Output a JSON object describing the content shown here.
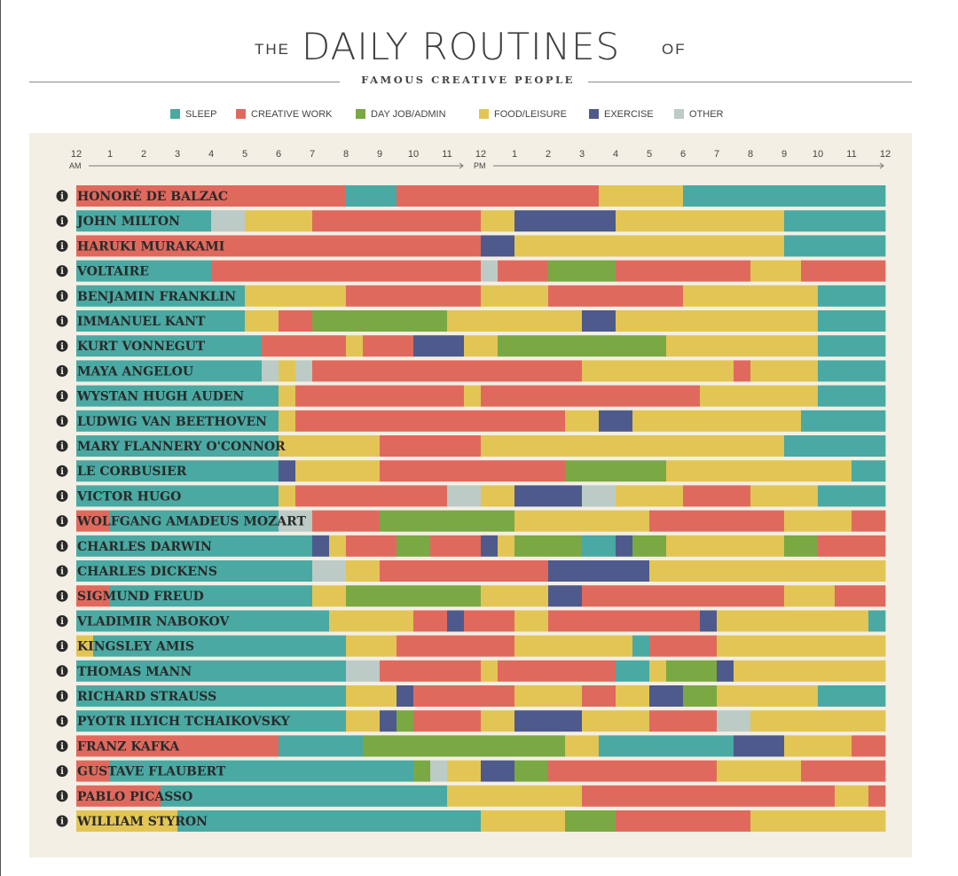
{
  "header": {
    "the": "THE",
    "title": "DAILY ROUTINES",
    "of": "OF",
    "subtitle": "FAMOUS CREATIVE PEOPLE"
  },
  "colors": {
    "sleep": "#4aa9a3",
    "creative": "#e0695e",
    "dayjob": "#7aa843",
    "food": "#e2c555",
    "exercise": "#4e5a8c",
    "other": "#bccbc6"
  },
  "chart_data": {
    "type": "bar",
    "orientation": "horizontal-stacked-timeline",
    "categories_key": {
      "S": "SLEEP",
      "C": "CREATIVE WORK",
      "D": "DAY JOB/ADMIN",
      "F": "FOOD/LEISURE",
      "E": "EXERCISE",
      "O": "OTHER"
    },
    "legend": [
      {
        "key": "S",
        "label": "SLEEP"
      },
      {
        "key": "C",
        "label": "CREATIVE WORK"
      },
      {
        "key": "D",
        "label": "DAY JOB/ADMIN"
      },
      {
        "key": "F",
        "label": "FOOD/LEISURE"
      },
      {
        "key": "E",
        "label": "EXERCISE"
      },
      {
        "key": "O",
        "label": "OTHER"
      }
    ],
    "x_ticks": [
      "12",
      "1",
      "2",
      "3",
      "4",
      "5",
      "6",
      "7",
      "8",
      "9",
      "10",
      "11",
      "12",
      "1",
      "2",
      "3",
      "4",
      "5",
      "6",
      "7",
      "8",
      "9",
      "10",
      "11",
      "12"
    ],
    "x_range_hours": [
      0,
      24
    ],
    "am_label": "AM",
    "pm_label": "PM",
    "info_glyph": "i",
    "rows": [
      {
        "name": "HONORÉ DE BALZAC",
        "segments": [
          [
            0,
            1,
            "C"
          ],
          [
            1,
            8,
            "C"
          ],
          [
            8,
            9.5,
            "S"
          ],
          [
            9.5,
            15.5,
            "C"
          ],
          [
            15.5,
            18,
            "F"
          ],
          [
            18,
            24,
            "S"
          ]
        ]
      },
      {
        "name": "JOHN MILTON",
        "segments": [
          [
            0,
            4,
            "S"
          ],
          [
            4,
            5,
            "O"
          ],
          [
            5,
            7,
            "F"
          ],
          [
            7,
            12,
            "C"
          ],
          [
            12,
            13,
            "F"
          ],
          [
            13,
            16,
            "E"
          ],
          [
            16,
            21,
            "F"
          ],
          [
            21,
            24,
            "S"
          ]
        ]
      },
      {
        "name": "HARUKI MURAKAMI",
        "segments": [
          [
            0,
            12,
            "C"
          ],
          [
            12,
            13,
            "E"
          ],
          [
            13,
            21,
            "F"
          ],
          [
            21,
            24,
            "S"
          ]
        ]
      },
      {
        "name": "VOLTAIRE",
        "segments": [
          [
            0,
            4,
            "S"
          ],
          [
            4,
            12,
            "C"
          ],
          [
            12,
            12.5,
            "O"
          ],
          [
            12.5,
            14,
            "C"
          ],
          [
            14,
            16,
            "D"
          ],
          [
            16,
            20,
            "C"
          ],
          [
            20,
            21.5,
            "F"
          ],
          [
            21.5,
            24,
            "C"
          ]
        ]
      },
      {
        "name": "BENJAMIN FRANKLIN",
        "segments": [
          [
            0,
            5,
            "S"
          ],
          [
            5,
            8,
            "F"
          ],
          [
            8,
            12,
            "C"
          ],
          [
            12,
            14,
            "F"
          ],
          [
            14,
            18,
            "C"
          ],
          [
            18,
            22,
            "F"
          ],
          [
            22,
            24,
            "S"
          ]
        ]
      },
      {
        "name": "IMMANUEL KANT",
        "segments": [
          [
            0,
            5,
            "S"
          ],
          [
            5,
            6,
            "F"
          ],
          [
            6,
            7,
            "C"
          ],
          [
            7,
            11,
            "D"
          ],
          [
            11,
            15,
            "F"
          ],
          [
            15,
            16,
            "E"
          ],
          [
            16,
            22,
            "F"
          ],
          [
            22,
            24,
            "S"
          ]
        ]
      },
      {
        "name": "KURT VONNEGUT",
        "segments": [
          [
            0,
            5.5,
            "S"
          ],
          [
            5.5,
            8,
            "C"
          ],
          [
            8,
            8.5,
            "F"
          ],
          [
            8.5,
            10,
            "C"
          ],
          [
            10,
            11.5,
            "E"
          ],
          [
            11.5,
            12.5,
            "F"
          ],
          [
            12.5,
            17.5,
            "D"
          ],
          [
            17.5,
            22,
            "F"
          ],
          [
            22,
            24,
            "S"
          ]
        ]
      },
      {
        "name": "MAYA ANGELOU",
        "segments": [
          [
            0,
            5.5,
            "S"
          ],
          [
            5.5,
            6,
            "O"
          ],
          [
            6,
            6.5,
            "F"
          ],
          [
            6.5,
            7,
            "O"
          ],
          [
            7,
            15,
            "C"
          ],
          [
            15,
            19.5,
            "F"
          ],
          [
            19.5,
            20,
            "C"
          ],
          [
            20,
            22,
            "F"
          ],
          [
            22,
            24,
            "S"
          ]
        ]
      },
      {
        "name": "WYSTAN HUGH AUDEN",
        "segments": [
          [
            0,
            6,
            "S"
          ],
          [
            6,
            6.5,
            "F"
          ],
          [
            6.5,
            11.5,
            "C"
          ],
          [
            11.5,
            12,
            "F"
          ],
          [
            12,
            18.5,
            "C"
          ],
          [
            18.5,
            22,
            "F"
          ],
          [
            22,
            24,
            "S"
          ]
        ]
      },
      {
        "name": "LUDWIG VAN BEETHOVEN",
        "segments": [
          [
            0,
            6,
            "S"
          ],
          [
            6,
            6.5,
            "F"
          ],
          [
            6.5,
            14.5,
            "C"
          ],
          [
            14.5,
            15.5,
            "F"
          ],
          [
            15.5,
            16.5,
            "E"
          ],
          [
            16.5,
            21.5,
            "F"
          ],
          [
            21.5,
            24,
            "S"
          ]
        ]
      },
      {
        "name": "MARY FLANNERY O'CONNOR",
        "segments": [
          [
            0,
            6,
            "S"
          ],
          [
            6,
            9,
            "F"
          ],
          [
            9,
            12,
            "C"
          ],
          [
            12,
            21,
            "F"
          ],
          [
            21,
            24,
            "S"
          ]
        ]
      },
      {
        "name": "LE CORBUSIER",
        "segments": [
          [
            0,
            6,
            "S"
          ],
          [
            6,
            6.5,
            "E"
          ],
          [
            6.5,
            9,
            "F"
          ],
          [
            9,
            14.5,
            "C"
          ],
          [
            14.5,
            17.5,
            "D"
          ],
          [
            17.5,
            23,
            "F"
          ],
          [
            23,
            24,
            "S"
          ]
        ]
      },
      {
        "name": "VICTOR HUGO",
        "segments": [
          [
            0,
            6,
            "S"
          ],
          [
            6,
            6.5,
            "F"
          ],
          [
            6.5,
            11,
            "C"
          ],
          [
            11,
            12,
            "O"
          ],
          [
            12,
            13,
            "F"
          ],
          [
            13,
            15,
            "E"
          ],
          [
            15,
            16,
            "O"
          ],
          [
            16,
            18,
            "F"
          ],
          [
            18,
            20,
            "C"
          ],
          [
            20,
            22,
            "F"
          ],
          [
            22,
            24,
            "S"
          ]
        ]
      },
      {
        "name": "WOLFGANG AMADEUS MOZART",
        "segments": [
          [
            0,
            1,
            "C"
          ],
          [
            1,
            6,
            "S"
          ],
          [
            6,
            7,
            "O"
          ],
          [
            7,
            9,
            "C"
          ],
          [
            9,
            13,
            "D"
          ],
          [
            13,
            17,
            "F"
          ],
          [
            17,
            21,
            "C"
          ],
          [
            21,
            23,
            "F"
          ],
          [
            23,
            24,
            "C"
          ]
        ]
      },
      {
        "name": "CHARLES DARWIN",
        "segments": [
          [
            0,
            7,
            "S"
          ],
          [
            7,
            7.5,
            "E"
          ],
          [
            7.5,
            8,
            "F"
          ],
          [
            8,
            9.5,
            "C"
          ],
          [
            9.5,
            10.5,
            "D"
          ],
          [
            10.5,
            12,
            "C"
          ],
          [
            12,
            12.5,
            "E"
          ],
          [
            12.5,
            13,
            "F"
          ],
          [
            13,
            15,
            "D"
          ],
          [
            15,
            16,
            "S"
          ],
          [
            16,
            16.5,
            "E"
          ],
          [
            16.5,
            17.5,
            "D"
          ],
          [
            17.5,
            21,
            "F"
          ],
          [
            21,
            22,
            "D"
          ],
          [
            22,
            24,
            "C"
          ]
        ]
      },
      {
        "name": "CHARLES DICKENS",
        "segments": [
          [
            0,
            7,
            "S"
          ],
          [
            7,
            8,
            "O"
          ],
          [
            8,
            9,
            "F"
          ],
          [
            9,
            14,
            "C"
          ],
          [
            14,
            17,
            "E"
          ],
          [
            17,
            24,
            "F"
          ]
        ]
      },
      {
        "name": "SIGMUND FREUD",
        "segments": [
          [
            0,
            1,
            "C"
          ],
          [
            1,
            7,
            "S"
          ],
          [
            7,
            8,
            "F"
          ],
          [
            8,
            12,
            "D"
          ],
          [
            12,
            14,
            "F"
          ],
          [
            14,
            15,
            "E"
          ],
          [
            15,
            21,
            "C"
          ],
          [
            21,
            22.5,
            "F"
          ],
          [
            22.5,
            24,
            "C"
          ]
        ]
      },
      {
        "name": "VLADIMIR NABOKOV",
        "segments": [
          [
            0,
            7.5,
            "S"
          ],
          [
            7.5,
            10,
            "F"
          ],
          [
            10,
            11,
            "C"
          ],
          [
            11,
            11.5,
            "E"
          ],
          [
            11.5,
            13,
            "C"
          ],
          [
            13,
            14,
            "F"
          ],
          [
            14,
            18.5,
            "C"
          ],
          [
            18.5,
            19,
            "E"
          ],
          [
            19,
            23.5,
            "F"
          ],
          [
            23.5,
            24,
            "S"
          ]
        ]
      },
      {
        "name": "KINGSLEY AMIS",
        "segments": [
          [
            0,
            0.5,
            "F"
          ],
          [
            0.5,
            8,
            "S"
          ],
          [
            8,
            9.5,
            "F"
          ],
          [
            9.5,
            13,
            "C"
          ],
          [
            13,
            16.5,
            "F"
          ],
          [
            16.5,
            17,
            "S"
          ],
          [
            17,
            19,
            "C"
          ],
          [
            19,
            24,
            "F"
          ]
        ]
      },
      {
        "name": "THOMAS MANN",
        "segments": [
          [
            0,
            8,
            "S"
          ],
          [
            8,
            9,
            "O"
          ],
          [
            9,
            12,
            "C"
          ],
          [
            12,
            12.5,
            "F"
          ],
          [
            12.5,
            16,
            "C"
          ],
          [
            16,
            17,
            "S"
          ],
          [
            17,
            17.5,
            "F"
          ],
          [
            17.5,
            19,
            "D"
          ],
          [
            19,
            19.5,
            "E"
          ],
          [
            19.5,
            24,
            "F"
          ]
        ]
      },
      {
        "name": "RICHARD STRAUSS",
        "segments": [
          [
            0,
            8,
            "S"
          ],
          [
            8,
            9.5,
            "F"
          ],
          [
            9.5,
            10,
            "E"
          ],
          [
            10,
            13,
            "C"
          ],
          [
            13,
            15,
            "F"
          ],
          [
            15,
            16,
            "C"
          ],
          [
            16,
            17,
            "F"
          ],
          [
            17,
            18,
            "E"
          ],
          [
            18,
            19,
            "D"
          ],
          [
            19,
            22,
            "F"
          ],
          [
            22,
            24,
            "S"
          ]
        ]
      },
      {
        "name": "PYOTR ILYICH TCHAIKOVSKY",
        "segments": [
          [
            0,
            8,
            "S"
          ],
          [
            8,
            9,
            "F"
          ],
          [
            9,
            9.5,
            "E"
          ],
          [
            9.5,
            10,
            "D"
          ],
          [
            10,
            12,
            "C"
          ],
          [
            12,
            13,
            "F"
          ],
          [
            13,
            15,
            "E"
          ],
          [
            15,
            17,
            "F"
          ],
          [
            17,
            19,
            "C"
          ],
          [
            19,
            20,
            "O"
          ],
          [
            20,
            24,
            "F"
          ]
        ]
      },
      {
        "name": "FRANZ KAFKA",
        "segments": [
          [
            0,
            6,
            "C"
          ],
          [
            6,
            8.5,
            "S"
          ],
          [
            8.5,
            14.5,
            "D"
          ],
          [
            14.5,
            15.5,
            "F"
          ],
          [
            15.5,
            19.5,
            "S"
          ],
          [
            19.5,
            21,
            "E"
          ],
          [
            21,
            23,
            "F"
          ],
          [
            23,
            24,
            "C"
          ]
        ]
      },
      {
        "name": "GUSTAVE FLAUBERT",
        "segments": [
          [
            0,
            1,
            "C"
          ],
          [
            1,
            10,
            "S"
          ],
          [
            10,
            10.5,
            "D"
          ],
          [
            10.5,
            11,
            "O"
          ],
          [
            11,
            12,
            "F"
          ],
          [
            12,
            13,
            "E"
          ],
          [
            13,
            14,
            "D"
          ],
          [
            14,
            19,
            "C"
          ],
          [
            19,
            21.5,
            "F"
          ],
          [
            21.5,
            24,
            "C"
          ]
        ]
      },
      {
        "name": "PABLO PICASSO",
        "segments": [
          [
            0,
            2.5,
            "C"
          ],
          [
            2.5,
            11,
            "S"
          ],
          [
            11,
            15,
            "F"
          ],
          [
            15,
            22.5,
            "C"
          ],
          [
            22.5,
            23.5,
            "F"
          ],
          [
            23.5,
            24,
            "C"
          ]
        ]
      },
      {
        "name": "WILLIAM STYRON",
        "segments": [
          [
            0,
            3,
            "F"
          ],
          [
            3,
            12,
            "S"
          ],
          [
            12,
            14.5,
            "F"
          ],
          [
            14.5,
            16,
            "D"
          ],
          [
            16,
            20,
            "C"
          ],
          [
            20,
            24,
            "F"
          ]
        ]
      }
    ]
  }
}
